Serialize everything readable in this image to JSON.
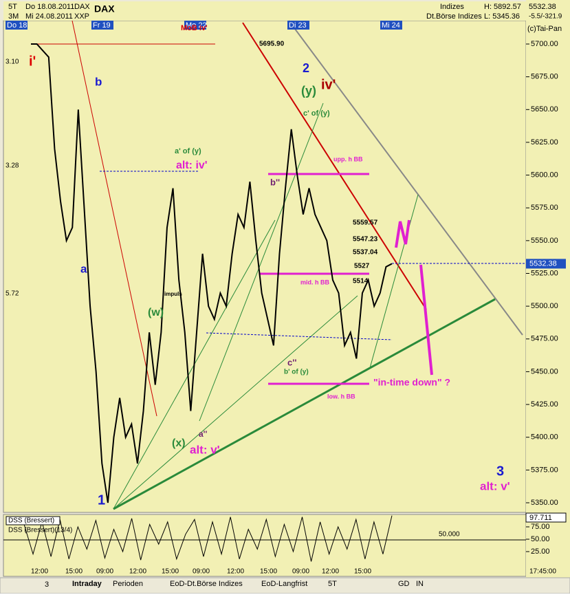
{
  "header": {
    "period": "5T",
    "range": "3M",
    "from": "Do 18.08.2011",
    "to": "Mi 24.08.2011",
    "symbol": "DAX",
    "exchange": "XXP",
    "name": "DAX",
    "group": "Indizes",
    "market": "Dt.Börse Indizes",
    "high": "H: 5892.57",
    "low": "L: 5345.36",
    "last": "5532.38",
    "change": "-5.5/-321.9",
    "copyright": "(c)Tai-Pan"
  },
  "days": [
    "Do 18",
    "Fr 19",
    "Mo 22",
    "Di 23",
    "Mi 24"
  ],
  "left_labels": [
    "3.10",
    "3.28",
    "5.72"
  ],
  "price": {
    "ylim": [
      5700,
      5350
    ],
    "yticks": [
      {
        "value": 5700,
        "label": "5700.00"
      },
      {
        "value": 5675,
        "label": "5675.00"
      },
      {
        "value": 5650,
        "label": "5650.00"
      },
      {
        "value": 5625,
        "label": "5625.00"
      },
      {
        "value": 5600,
        "label": "5600.00"
      },
      {
        "value": 5575,
        "label": "5575.00"
      },
      {
        "value": 5550,
        "label": "5550.00"
      },
      {
        "value": 5525,
        "label": "5525.00"
      },
      {
        "value": 5500,
        "label": "5500.00"
      },
      {
        "value": 5475,
        "label": "5475.00"
      },
      {
        "value": 5450,
        "label": "5450.00"
      },
      {
        "value": 5425,
        "label": "5425.00"
      },
      {
        "value": 5400,
        "label": "5400.00"
      },
      {
        "value": 5375,
        "label": "5375.00"
      },
      {
        "value": 5350,
        "label": "5350.00"
      }
    ],
    "current": 5532.38,
    "values": [
      5700,
      5700,
      5695,
      5690,
      5620,
      5580,
      5550,
      5560,
      5650,
      5575,
      5500,
      5450,
      5380,
      5350,
      5400,
      5430,
      5400,
      5410,
      5380,
      5420,
      5480,
      5440,
      5480,
      5560,
      5590,
      5520,
      5480,
      5420,
      5480,
      5540,
      5500,
      5490,
      5510,
      5500,
      5540,
      5570,
      5560,
      5595,
      5550,
      5510,
      5490,
      5470,
      5540,
      5590,
      5635,
      5600,
      5570,
      5590,
      5570,
      5560,
      5550,
      5520,
      5510,
      5470,
      5480,
      5460,
      5510,
      5520,
      5500,
      5510,
      5530,
      5532.38
    ]
  },
  "annotations": [
    "i'",
    "b",
    "a",
    "1",
    "2",
    "(y)",
    "iv'",
    "c' of (y)",
    "a' of (y)",
    "alt: iv'",
    "b''",
    "upp. h BB",
    "mid. h BB",
    "low. h BB",
    "c''",
    "b' of (y)",
    "(w)",
    "impuls",
    "(x)",
    "a''",
    "alt: v'",
    "\"in-time down\" ?",
    "3",
    "alt: v'",
    "5695.90",
    "5559.57",
    "5547.23",
    "5537.04",
    "5527",
    "5514",
    "MoB iv'"
  ],
  "oscillator": {
    "title": "DSS (Bressert)",
    "subtitle": "DSS (Bressert)(13/4)",
    "level_label": "50.000",
    "current": "97.711",
    "ylim": [
      0,
      100
    ],
    "yticks": [
      {
        "value": 75,
        "label": "75.00"
      },
      {
        "value": 50,
        "label": "50.00"
      },
      {
        "value": 25,
        "label": "25.00"
      }
    ],
    "values": [
      80,
      20,
      85,
      15,
      90,
      10,
      75,
      30,
      88,
      12,
      70,
      25,
      92,
      8,
      80,
      40,
      85,
      10,
      60,
      90,
      15,
      85,
      20,
      95,
      10,
      70,
      30,
      90,
      15,
      80,
      25,
      95,
      5,
      85,
      20,
      75,
      30,
      90,
      10,
      85,
      20,
      97.711
    ]
  },
  "x_labels": [
    "12:00",
    "15:00",
    "09:00",
    "12:00",
    "15:00",
    "09:00",
    "12:00",
    "15:00",
    "09:00",
    "12:00",
    "15:00",
    "17:45:00"
  ],
  "tabs": [
    "3",
    "Intraday",
    "Perioden",
    "EoD-Dt.Börse Indizes",
    "EoD-Langfrist",
    "5T",
    "GD",
    "IN"
  ]
}
